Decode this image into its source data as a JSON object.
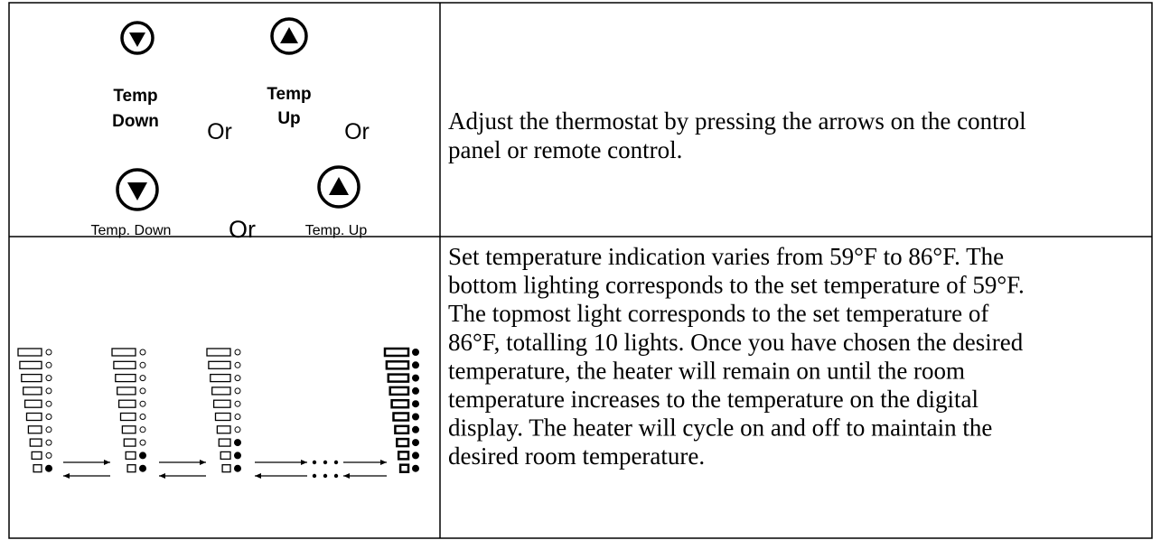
{
  "table": {
    "rows": [
      {
        "controls": [
          {
            "label": [
              "Temp",
              "Down"
            ]
          },
          {
            "text": "Or"
          },
          {
            "label": [
              "Temp",
              "Up"
            ]
          },
          {
            "text": "Or"
          },
          {
            "label": [
              "Temp. Down"
            ]
          },
          {
            "text": "Or"
          },
          {
            "label": [
              "Temp. Up"
            ]
          }
        ],
        "description": [
          "Adjust the thermostat by pressing the arrows on the control",
          "panel or remote control."
        ]
      },
      {
        "description": [
          "Set temperature indication varies from 59°F to 86°F. The",
          "bottom lighting corresponds to the set temperature of 59°F.",
          "The topmost light corresponds to the set temperature of",
          "86°F, totalling 10 lights. Once you have chosen the desired",
          "temperature, the heater will remain on until the room",
          "temperature increases to the temperature on the digital",
          "display. The heater will cycle on and off to maintain the",
          "desired room temperature."
        ]
      }
    ]
  }
}
